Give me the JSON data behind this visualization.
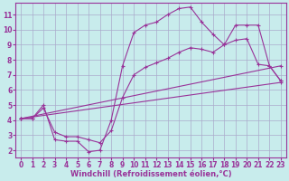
{
  "background_color": "#c8ecec",
  "grid_color": "#aaaacc",
  "line_color": "#993399",
  "marker": "+",
  "markersize": 3,
  "linewidth": 0.8,
  "xlabel": "Windchill (Refroidissement éolien,°C)",
  "xlabel_fontsize": 6,
  "tick_fontsize": 5.5,
  "xlim": [
    -0.5,
    23.5
  ],
  "ylim": [
    1.5,
    11.8
  ],
  "yticks": [
    2,
    3,
    4,
    5,
    6,
    7,
    8,
    9,
    10,
    11
  ],
  "xticks": [
    0,
    1,
    2,
    3,
    4,
    5,
    6,
    7,
    8,
    9,
    10,
    11,
    12,
    13,
    14,
    15,
    16,
    17,
    18,
    19,
    20,
    21,
    22,
    23
  ],
  "lines": [
    {
      "x": [
        0,
        1,
        2,
        3,
        4,
        5,
        6,
        7,
        8,
        9,
        10,
        11,
        12,
        13,
        14,
        15,
        16,
        17,
        18,
        19,
        20,
        21,
        22,
        23
      ],
      "y": [
        4.1,
        4.1,
        5.0,
        2.7,
        2.6,
        2.6,
        1.9,
        2.0,
        4.0,
        7.6,
        9.8,
        10.3,
        10.5,
        11.0,
        11.4,
        11.5,
        10.5,
        9.7,
        9.0,
        10.3,
        10.3,
        10.3,
        7.6,
        6.6
      ]
    },
    {
      "x": [
        0,
        1,
        2,
        3,
        4,
        5,
        6,
        7,
        8,
        9,
        10,
        11,
        12,
        13,
        14,
        15,
        16,
        17,
        18,
        19,
        20,
        21,
        22,
        23
      ],
      "y": [
        4.1,
        4.1,
        4.8,
        3.2,
        2.9,
        2.9,
        2.7,
        2.5,
        3.3,
        5.5,
        7.0,
        7.5,
        7.8,
        8.1,
        8.5,
        8.8,
        8.7,
        8.5,
        9.0,
        9.3,
        9.4,
        7.7,
        7.6,
        6.6
      ]
    },
    {
      "x": [
        0,
        1,
        23
      ],
      "y": [
        4.1,
        4.1,
        6.6
      ]
    },
    {
      "x": [
        0,
        1,
        23
      ],
      "y": [
        4.1,
        4.1,
        6.6
      ]
    }
  ]
}
